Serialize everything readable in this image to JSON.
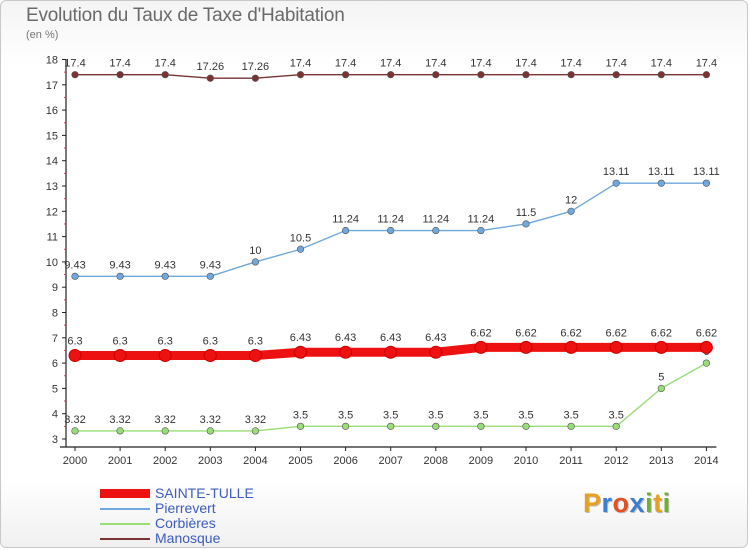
{
  "chart_data": {
    "type": "line",
    "title": "Evolution du Taux de Taxe d'Habitation",
    "subtitle": "(en %)",
    "x": [
      "2000",
      "2001",
      "2002",
      "2003",
      "2004",
      "2005",
      "2006",
      "2007",
      "2008",
      "2009",
      "2010",
      "2011",
      "2012",
      "2013",
      "2014"
    ],
    "ylim": [
      3,
      18
    ],
    "yticks": [
      "3",
      "4",
      "5",
      "6",
      "7",
      "8",
      "9",
      "10",
      "11",
      "12",
      "13",
      "14",
      "15",
      "16",
      "17",
      "18"
    ],
    "grid": false,
    "legend_position": "bottom-left",
    "series": [
      {
        "name": "SAINTE-TULLE",
        "color": "#ee1111",
        "labels": [
          "6.3",
          "6.3",
          "6.3",
          "6.3",
          "6.3",
          "6.43",
          "6.43",
          "6.43",
          "6.43",
          "6.62",
          "6.62",
          "6.62",
          "6.62",
          "6.62",
          "6.62"
        ],
        "values": [
          6.3,
          6.3,
          6.3,
          6.3,
          6.3,
          6.43,
          6.43,
          6.43,
          6.43,
          6.62,
          6.62,
          6.62,
          6.62,
          6.62,
          6.62
        ]
      },
      {
        "name": "Pierrevert",
        "color": "#6fa8dc",
        "labels": [
          "9.43",
          "9.43",
          "9.43",
          "9.43",
          "10",
          "10.5",
          "11.24",
          "11.24",
          "11.24",
          "11.24",
          "11.5",
          "12",
          "13.11",
          "13.11",
          "13.11"
        ],
        "values": [
          9.43,
          9.43,
          9.43,
          9.43,
          10,
          10.5,
          11.24,
          11.24,
          11.24,
          11.24,
          11.5,
          12,
          13.11,
          13.11,
          13.11
        ]
      },
      {
        "name": "Corbières",
        "color": "#99dd77",
        "labels": [
          "3.32",
          "3.32",
          "3.32",
          "3.32",
          "3.32",
          "3.5",
          "3.5",
          "3.5",
          "3.5",
          "3.5",
          "3.5",
          "3.5",
          "3.5",
          "5",
          "6"
        ],
        "values": [
          3.32,
          3.32,
          3.32,
          3.32,
          3.32,
          3.5,
          3.5,
          3.5,
          3.5,
          3.5,
          3.5,
          3.5,
          3.5,
          5,
          6
        ]
      },
      {
        "name": "Manosque",
        "color": "#7a3333",
        "labels": [
          "17.4",
          "17.4",
          "17.4",
          "17.26",
          "17.26",
          "17.4",
          "17.4",
          "17.4",
          "17.4",
          "17.4",
          "17.4",
          "17.4",
          "17.4",
          "17.4",
          "17.4"
        ],
        "values": [
          17.4,
          17.4,
          17.4,
          17.26,
          17.26,
          17.4,
          17.4,
          17.4,
          17.4,
          17.4,
          17.4,
          17.4,
          17.4,
          17.4,
          17.4
        ]
      }
    ]
  },
  "logo": {
    "letters": [
      "P",
      "r",
      "o",
      "x",
      "i",
      "t",
      "i"
    ],
    "colors": [
      "#e8a020",
      "#3a7fd0",
      "#e05020",
      "#3a7fd0",
      "#70b030",
      "#e8a020",
      "#70b030"
    ]
  }
}
